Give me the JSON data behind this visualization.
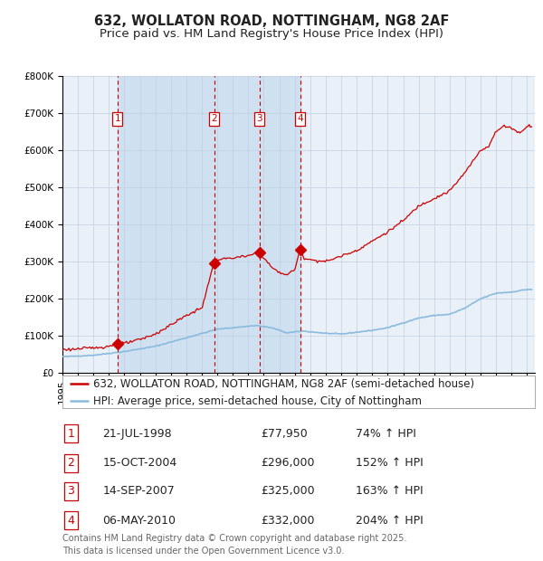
{
  "title_line1": "632, WOLLATON ROAD, NOTTINGHAM, NG8 2AF",
  "title_line2": "Price paid vs. HM Land Registry's House Price Index (HPI)",
  "legend_label_red": "632, WOLLATON ROAD, NOTTINGHAM, NG8 2AF (semi-detached house)",
  "legend_label_blue": "HPI: Average price, semi-detached house, City of Nottingham",
  "footer_line1": "Contains HM Land Registry data © Crown copyright and database right 2025.",
  "footer_line2": "This data is licensed under the Open Government Licence v3.0.",
  "sales": [
    {
      "num": 1,
      "date_str": "21-JUL-1998",
      "date_x": 1998.55,
      "price": 77950,
      "pct": "74%",
      "dir": "↑"
    },
    {
      "num": 2,
      "date_str": "15-OCT-2004",
      "date_x": 2004.79,
      "price": 296000,
      "pct": "152%",
      "dir": "↑"
    },
    {
      "num": 3,
      "date_str": "14-SEP-2007",
      "date_x": 2007.71,
      "price": 325000,
      "pct": "163%",
      "dir": "↑"
    },
    {
      "num": 4,
      "date_str": "06-MAY-2010",
      "date_x": 2010.35,
      "price": 332000,
      "pct": "204%",
      "dir": "↑"
    }
  ],
  "ylim": [
    0,
    800000
  ],
  "xlim_start": 1995.0,
  "xlim_end": 2025.5,
  "background_color": "#ffffff",
  "plot_bg_color": "#eaf0f8",
  "shaded_region_color": "#cfe0f0",
  "grid_color": "#c0cfe0",
  "red_line_color": "#cc0000",
  "blue_line_color": "#88bbdd",
  "dashed_line_color": "#cc0000",
  "marker_color": "#cc0000",
  "label_box_color": "#cc0000",
  "title_fontsize": 10.5,
  "subtitle_fontsize": 9.5,
  "tick_fontsize": 7.5,
  "legend_fontsize": 8.5,
  "table_fontsize": 9,
  "footer_fontsize": 7.0,
  "hpi_anchors": [
    [
      1995.0,
      44000
    ],
    [
      1997.0,
      48000
    ],
    [
      1999.0,
      58000
    ],
    [
      2001.0,
      72000
    ],
    [
      2003.0,
      95000
    ],
    [
      2005.0,
      118000
    ],
    [
      2007.5,
      128000
    ],
    [
      2008.5,
      122000
    ],
    [
      2009.5,
      108000
    ],
    [
      2010.5,
      113000
    ],
    [
      2012.0,
      107000
    ],
    [
      2013.0,
      105000
    ],
    [
      2014.0,
      110000
    ],
    [
      2015.0,
      115000
    ],
    [
      2016.0,
      122000
    ],
    [
      2017.0,
      135000
    ],
    [
      2018.0,
      148000
    ],
    [
      2019.0,
      155000
    ],
    [
      2020.0,
      158000
    ],
    [
      2021.0,
      175000
    ],
    [
      2022.0,
      200000
    ],
    [
      2023.0,
      215000
    ],
    [
      2024.0,
      218000
    ],
    [
      2025.0,
      225000
    ]
  ],
  "red_anchors": [
    [
      1995.0,
      63000
    ],
    [
      1996.0,
      65000
    ],
    [
      1997.0,
      68000
    ],
    [
      1998.0,
      72000
    ],
    [
      1998.55,
      77950
    ],
    [
      1999.0,
      80000
    ],
    [
      2000.0,
      90000
    ],
    [
      2001.0,
      105000
    ],
    [
      2002.0,
      130000
    ],
    [
      2003.0,
      155000
    ],
    [
      2004.0,
      175000
    ],
    [
      2004.78,
      296000
    ],
    [
      2005.0,
      305000
    ],
    [
      2006.0,
      310000
    ],
    [
      2007.0,
      315000
    ],
    [
      2007.71,
      325000
    ],
    [
      2008.0,
      310000
    ],
    [
      2008.5,
      285000
    ],
    [
      2009.0,
      270000
    ],
    [
      2009.5,
      265000
    ],
    [
      2010.0,
      278000
    ],
    [
      2010.35,
      332000
    ],
    [
      2010.6,
      310000
    ],
    [
      2011.0,
      305000
    ],
    [
      2012.0,
      300000
    ],
    [
      2013.0,
      315000
    ],
    [
      2014.0,
      330000
    ],
    [
      2015.0,
      355000
    ],
    [
      2016.0,
      380000
    ],
    [
      2017.0,
      410000
    ],
    [
      2018.0,
      450000
    ],
    [
      2019.0,
      470000
    ],
    [
      2020.0,
      490000
    ],
    [
      2021.0,
      540000
    ],
    [
      2022.0,
      600000
    ],
    [
      2022.5,
      610000
    ],
    [
      2023.0,
      650000
    ],
    [
      2023.5,
      665000
    ],
    [
      2024.0,
      660000
    ],
    [
      2024.5,
      645000
    ],
    [
      2025.0,
      665000
    ]
  ]
}
